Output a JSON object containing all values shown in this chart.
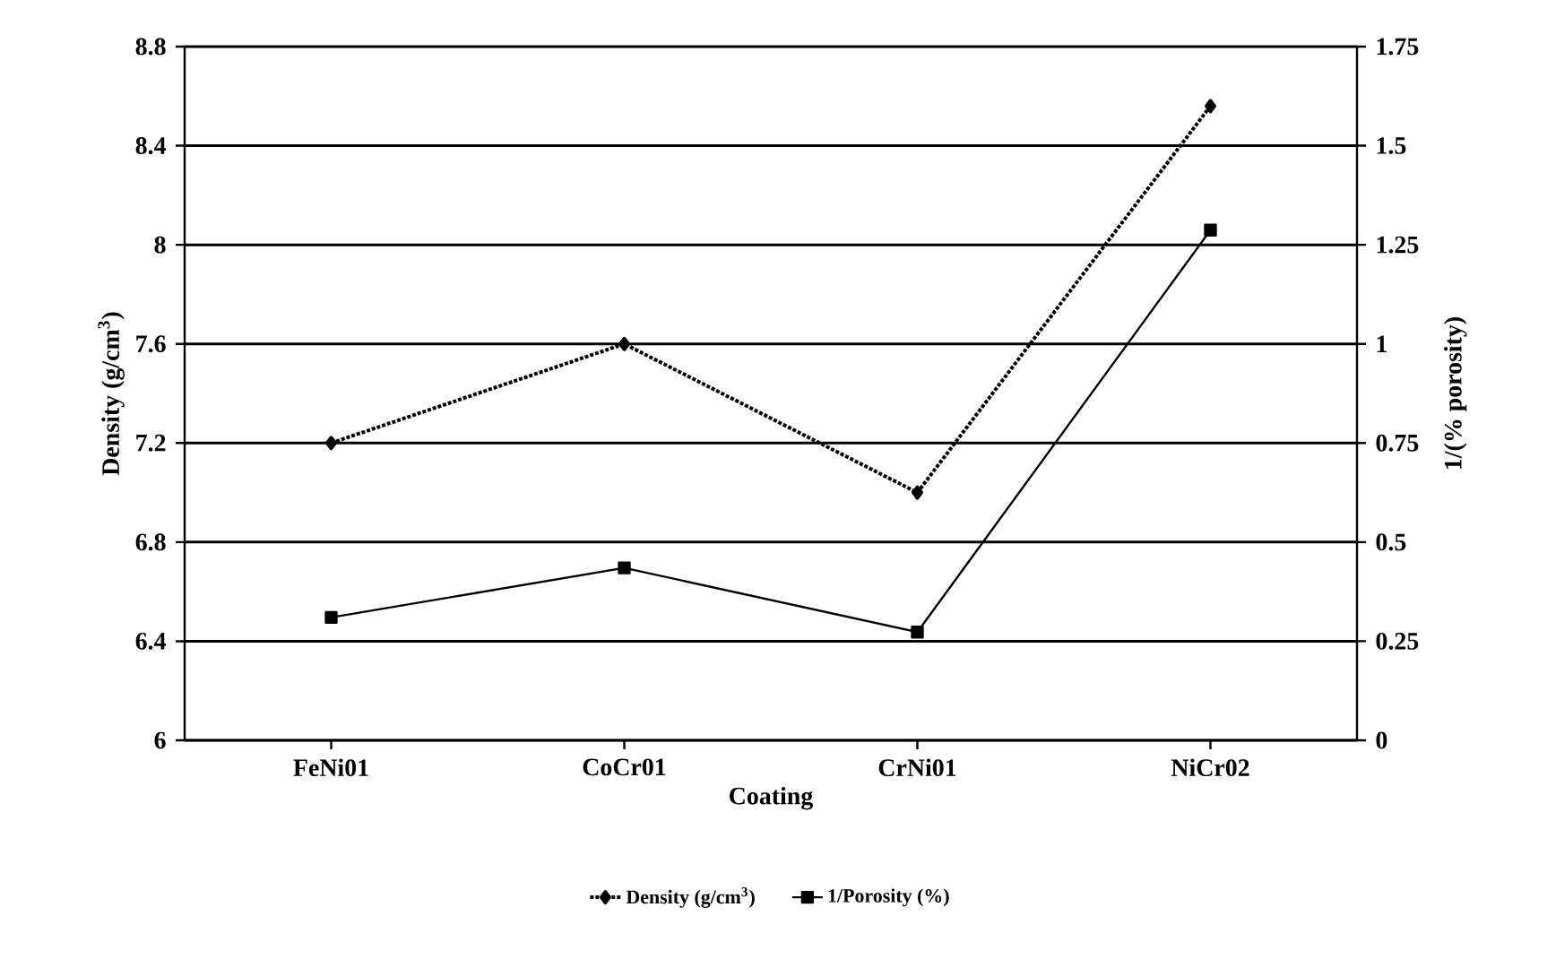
{
  "chart_data": {
    "type": "line",
    "xlabel": "Coating",
    "ylabel": "Density (g/cm$^{3}$)",
    "y2label": "1/(% porosity)",
    "categories": [
      "FeNi01",
      "CoCr01",
      "CrNi01",
      "NiCr02"
    ],
    "series": [
      {
        "name": "Density (g/cm$^{3}$)",
        "color": "#000000",
        "values": [
          7.2,
          7.6,
          7.0,
          8.56
        ],
        "marker": "diamond",
        "line_style": "dotted"
      },
      {
        "name": "1/Porosity (%)",
        "color": "#000000",
        "values": [
          0.31,
          0.435,
          0.273,
          1.287
        ],
        "marker": "square",
        "line_style": "solid",
        "axis": "y2"
      }
    ],
    "ylim": [
      6,
      8.8
    ],
    "yticks": [
      6,
      6.4,
      6.8,
      7.2,
      7.6,
      8,
      8.4,
      8.8
    ],
    "y2lim": [
      0,
      1.75
    ],
    "y2ticks": [
      0,
      0.25,
      0.5,
      0.75,
      1,
      1.25,
      1.5,
      1.75
    ],
    "grid": "y",
    "legend": "bottom"
  }
}
